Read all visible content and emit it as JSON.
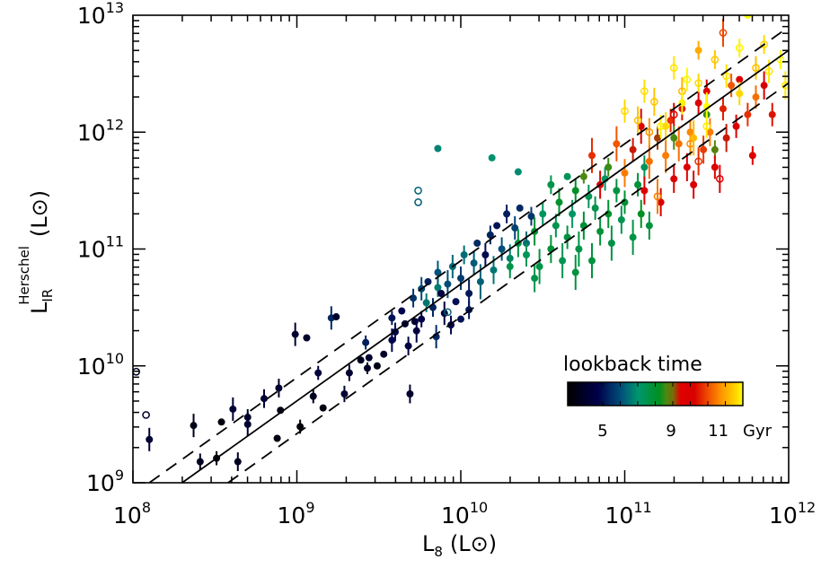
{
  "chart_data": {
    "type": "scatter",
    "title": "",
    "xscale": "log",
    "yscale": "log",
    "xlim_log10": [
      8,
      12
    ],
    "ylim_log10": [
      9,
      13
    ],
    "xlabel": {
      "main": "L",
      "sub": "8",
      "unit": "(L⊙)"
    },
    "ylabel": {
      "main": "L",
      "sub": "IR",
      "sup": "Herschel",
      "unit": "(L⊙)"
    },
    "x_ticks": [
      {
        "base": "10",
        "exp": "8",
        "value": 8
      },
      {
        "base": "10",
        "exp": "9",
        "value": 9
      },
      {
        "base": "10",
        "exp": "10",
        "value": 10
      },
      {
        "base": "10",
        "exp": "11",
        "value": 11
      },
      {
        "base": "10",
        "exp": "12",
        "value": 12
      }
    ],
    "y_ticks": [
      {
        "base": "10",
        "exp": "9",
        "value": 9
      },
      {
        "base": "10",
        "exp": "10",
        "value": 10
      },
      {
        "base": "10",
        "exp": "11",
        "value": 11
      },
      {
        "base": "10",
        "exp": "12",
        "value": 12
      },
      {
        "base": "10",
        "exp": "13",
        "value": 13
      }
    ],
    "lines": [
      {
        "name": "best-fit",
        "style": "solid",
        "slope": 1.0,
        "intercept": 0.7
      },
      {
        "name": "upper-scatter",
        "style": "dashed",
        "slope": 1.0,
        "intercept": 0.9
      },
      {
        "name": "lower-scatter",
        "style": "dashed",
        "slope": 1.0,
        "intercept": 0.42
      }
    ],
    "colorbar": {
      "title": "lookback time",
      "unit": "Gyr",
      "range": [
        3.4,
        13.0
      ],
      "ticks": [
        {
          "label": "5",
          "value": 5
        },
        {
          "label": "9",
          "value": 9
        },
        {
          "label": "11",
          "value": 11
        }
      ],
      "legend_placement": "bottom-right"
    },
    "point_fields": [
      "log_L8",
      "log_LIR",
      "lookback_Gyr",
      "open_symbol",
      "err_dex"
    ],
    "points": [
      [
        8.02,
        9.95,
        4.0,
        1,
        0
      ],
      [
        8.08,
        9.58,
        4.2,
        1,
        0
      ],
      [
        8.1,
        9.37,
        4.3,
        0,
        0.1
      ],
      [
        8.37,
        9.49,
        3.8,
        0,
        0.1
      ],
      [
        8.41,
        9.18,
        4.0,
        0,
        0.07
      ],
      [
        8.51,
        9.21,
        3.7,
        0,
        0.06
      ],
      [
        8.54,
        9.52,
        3.6,
        0,
        0
      ],
      [
        8.61,
        9.63,
        4.4,
        0,
        0.1
      ],
      [
        8.64,
        9.18,
        4.0,
        0,
        0.08
      ],
      [
        8.7,
        9.56,
        4.1,
        0,
        0.07
      ],
      [
        8.7,
        9.5,
        4.3,
        0,
        0.1
      ],
      [
        8.8,
        9.72,
        4.4,
        0,
        0.08
      ],
      [
        8.88,
        9.38,
        3.7,
        0,
        0
      ],
      [
        8.89,
        9.81,
        4.2,
        0,
        0.08
      ],
      [
        8.9,
        9.62,
        3.8,
        0,
        0
      ],
      [
        8.99,
        10.27,
        4.3,
        0,
        0.1
      ],
      [
        9.06,
        10.24,
        4.2,
        0,
        0
      ],
      [
        9.02,
        9.48,
        3.6,
        0,
        0.06
      ],
      [
        9.1,
        9.74,
        4.0,
        0,
        0.06
      ],
      [
        9.13,
        9.94,
        4.5,
        0,
        0.06
      ],
      [
        9.16,
        9.64,
        3.7,
        0,
        0
      ],
      [
        9.21,
        10.41,
        5.4,
        0,
        0.1
      ],
      [
        9.24,
        10.42,
        4.2,
        0,
        0
      ],
      [
        9.29,
        9.76,
        4.4,
        0,
        0.07
      ],
      [
        9.32,
        9.94,
        4.3,
        0,
        0.07
      ],
      [
        9.39,
        10.05,
        4.0,
        0,
        0
      ],
      [
        9.42,
        10.2,
        5.2,
        0,
        0.06
      ],
      [
        9.43,
        9.98,
        4.1,
        0,
        0.05
      ],
      [
        9.44,
        10.07,
        4.3,
        0,
        0
      ],
      [
        9.49,
        10.0,
        3.8,
        0,
        0
      ],
      [
        9.53,
        10.1,
        4.1,
        0,
        0
      ],
      [
        9.58,
        10.22,
        4.8,
        0,
        0.1
      ],
      [
        9.6,
        10.29,
        4.9,
        0,
        0.08
      ],
      [
        9.66,
        10.36,
        4.4,
        0,
        0
      ],
      [
        9.69,
        9.76,
        4.2,
        0,
        0.08
      ],
      [
        9.68,
        10.17,
        4.6,
        0,
        0.08
      ],
      [
        9.72,
        10.38,
        4.3,
        0,
        0
      ],
      [
        9.76,
        10.4,
        4.7,
        0,
        0.07
      ],
      [
        9.79,
        10.54,
        6.6,
        0,
        0.08
      ],
      [
        9.86,
        10.67,
        6.7,
        0,
        0.08
      ],
      [
        9.58,
        10.41,
        5.0,
        0,
        0.06
      ],
      [
        9.64,
        10.47,
        4.8,
        0,
        0
      ],
      [
        9.71,
        10.58,
        5.6,
        0,
        0.08
      ],
      [
        9.76,
        10.66,
        5.9,
        0,
        0.1
      ],
      [
        9.8,
        10.72,
        5.2,
        0,
        0
      ],
      [
        9.83,
        10.5,
        5.3,
        0,
        0.08
      ],
      [
        9.86,
        10.8,
        6.1,
        0,
        0.1
      ],
      [
        9.88,
        10.62,
        4.7,
        0,
        0
      ],
      [
        9.9,
        10.45,
        4.5,
        0,
        0.1
      ],
      [
        9.92,
        10.7,
        6.0,
        0,
        0.12
      ],
      [
        9.95,
        10.85,
        6.4,
        0,
        0.1
      ],
      [
        9.97,
        10.55,
        5.0,
        0,
        0
      ],
      [
        10.0,
        10.75,
        5.7,
        0,
        0.1
      ],
      [
        10.02,
        10.95,
        6.5,
        0,
        0.08
      ],
      [
        10.05,
        10.62,
        5.1,
        0,
        0.12
      ],
      [
        10.08,
        10.88,
        6.2,
        0,
        0.1
      ],
      [
        10.1,
        11.05,
        5.4,
        0,
        0
      ],
      [
        10.12,
        10.72,
        6.3,
        0,
        0.15
      ],
      [
        10.15,
        10.95,
        4.9,
        0,
        0.1
      ],
      [
        10.18,
        11.12,
        5.3,
        0,
        0.08
      ],
      [
        10.2,
        10.82,
        6.6,
        0,
        0.12
      ],
      [
        10.22,
        11.2,
        5.0,
        0,
        0
      ],
      [
        10.25,
        11.0,
        6.0,
        0,
        0.1
      ],
      [
        10.28,
        11.3,
        5.2,
        0,
        0.08
      ],
      [
        10.3,
        10.92,
        6.7,
        0,
        0.12
      ],
      [
        10.33,
        11.18,
        5.8,
        0,
        0.1
      ],
      [
        10.36,
        11.35,
        5.4,
        0,
        0
      ],
      [
        10.4,
        11.05,
        6.5,
        0,
        0.1
      ],
      [
        10.43,
        11.28,
        5.6,
        0,
        0.08
      ],
      [
        9.94,
        10.35,
        4.8,
        0,
        0.08
      ],
      [
        10.0,
        10.4,
        5.0,
        0,
        0
      ],
      [
        9.73,
        10.3,
        4.6,
        0,
        0.1
      ],
      [
        9.85,
        10.25,
        5.4,
        0,
        0.1
      ],
      [
        10.05,
        10.48,
        5.1,
        0,
        0.08
      ],
      [
        9.86,
        11.86,
        6.8,
        0,
        0
      ],
      [
        9.74,
        11.5,
        6.3,
        1,
        0
      ],
      [
        9.74,
        11.4,
        6.2,
        1,
        0
      ],
      [
        10.19,
        11.78,
        7.0,
        0,
        0
      ],
      [
        10.35,
        11.66,
        6.9,
        0,
        0
      ],
      [
        9.92,
        10.46,
        6.4,
        1,
        0
      ],
      [
        10.3,
        10.85,
        7.6,
        0,
        0.1
      ],
      [
        10.35,
        11.05,
        7.8,
        0,
        0.12
      ],
      [
        10.4,
        10.95,
        7.4,
        0,
        0.1
      ],
      [
        10.45,
        11.15,
        8.0,
        0,
        0.12
      ],
      [
        10.48,
        10.85,
        7.7,
        0,
        0.15
      ],
      [
        10.5,
        11.3,
        7.3,
        0,
        0.1
      ],
      [
        10.55,
        11.0,
        7.9,
        0,
        0.12
      ],
      [
        10.58,
        11.2,
        7.6,
        0,
        0.1
      ],
      [
        10.6,
        11.4,
        8.1,
        0,
        0.12
      ],
      [
        10.62,
        10.9,
        7.5,
        0,
        0.15
      ],
      [
        10.65,
        11.1,
        7.8,
        0,
        0.1
      ],
      [
        10.68,
        11.3,
        7.2,
        0,
        0.12
      ],
      [
        10.7,
        11.5,
        8.2,
        0,
        0.1
      ],
      [
        10.72,
        11.0,
        7.7,
        0,
        0.15
      ],
      [
        10.75,
        11.2,
        8.0,
        0,
        0.12
      ],
      [
        10.78,
        11.45,
        7.4,
        0,
        0.1
      ],
      [
        10.8,
        10.9,
        7.8,
        0,
        0.15
      ],
      [
        10.82,
        11.35,
        7.6,
        0,
        0.1
      ],
      [
        10.85,
        11.15,
        7.9,
        0,
        0.12
      ],
      [
        10.88,
        11.6,
        7.3,
        0,
        0.1
      ],
      [
        10.9,
        11.3,
        8.1,
        0,
        0.12
      ],
      [
        10.92,
        11.05,
        7.7,
        0,
        0.15
      ],
      [
        10.95,
        11.5,
        7.8,
        0,
        0.1
      ],
      [
        10.98,
        11.25,
        7.5,
        0,
        0.12
      ],
      [
        11.0,
        11.4,
        8.0,
        0,
        0.1
      ],
      [
        11.05,
        11.1,
        7.7,
        0,
        0.15
      ],
      [
        11.08,
        11.55,
        7.9,
        0,
        0.1
      ],
      [
        11.1,
        11.3,
        8.3,
        0,
        0.12
      ],
      [
        11.12,
        11.7,
        7.4,
        0,
        0.1
      ],
      [
        11.15,
        11.2,
        7.8,
        0,
        0.12
      ],
      [
        10.55,
        11.55,
        7.6,
        0,
        0.08
      ],
      [
        10.65,
        11.62,
        7.4,
        0,
        0
      ],
      [
        10.45,
        10.75,
        7.6,
        0,
        0.12
      ],
      [
        10.7,
        10.8,
        7.8,
        0,
        0.15
      ],
      [
        10.75,
        11.62,
        8.7,
        0,
        0.06
      ],
      [
        10.9,
        11.7,
        8.6,
        0,
        0.08
      ],
      [
        11.3,
        11.95,
        8.7,
        0,
        0.1
      ],
      [
        11.5,
        12.15,
        8.6,
        0,
        0
      ],
      [
        11.55,
        11.85,
        8.8,
        0,
        0.08
      ],
      [
        10.8,
        11.8,
        10.3,
        0,
        0.15
      ],
      [
        10.85,
        11.55,
        9.6,
        0,
        0.12
      ],
      [
        10.95,
        11.9,
        10.6,
        0,
        0.15
      ],
      [
        11.0,
        11.65,
        10.9,
        0,
        0.12
      ],
      [
        11.05,
        11.85,
        9.3,
        0,
        0.1
      ],
      [
        11.1,
        12.05,
        10.0,
        0,
        0.15
      ],
      [
        11.12,
        11.5,
        9.6,
        0,
        0.12
      ],
      [
        11.15,
        11.75,
        10.8,
        0,
        0.15
      ],
      [
        11.2,
        11.95,
        9.2,
        0,
        0.1
      ],
      [
        11.22,
        11.4,
        9.8,
        0,
        0.12
      ],
      [
        11.25,
        11.8,
        10.9,
        0,
        0.15
      ],
      [
        11.28,
        12.1,
        10.3,
        0,
        0.1
      ],
      [
        11.3,
        11.6,
        9.5,
        0,
        0.12
      ],
      [
        11.33,
        11.9,
        10.8,
        0,
        0.15
      ],
      [
        11.35,
        12.2,
        10.1,
        0,
        0.1
      ],
      [
        11.38,
        11.7,
        9.6,
        0,
        0.12
      ],
      [
        11.4,
        12.0,
        11.0,
        0,
        0.1
      ],
      [
        11.42,
        11.55,
        9.8,
        0,
        0.12
      ],
      [
        11.45,
        12.25,
        9.4,
        0,
        0.1
      ],
      [
        11.48,
        11.85,
        10.4,
        0,
        0.12
      ],
      [
        11.5,
        12.35,
        9.6,
        0,
        0.1
      ],
      [
        11.52,
        12.0,
        10.9,
        0,
        0.12
      ],
      [
        11.55,
        11.7,
        9.7,
        0,
        0.1
      ],
      [
        11.6,
        12.2,
        10.2,
        0,
        0.1
      ],
      [
        11.62,
        11.95,
        9.3,
        0,
        0.12
      ],
      [
        11.65,
        12.4,
        10.6,
        0,
        0.1
      ],
      [
        11.68,
        12.05,
        9.9,
        0,
        0.1
      ],
      [
        11.7,
        12.45,
        9.5,
        0,
        0
      ],
      [
        11.75,
        12.15,
        10.3,
        0,
        0.1
      ],
      [
        11.78,
        11.8,
        9.6,
        0,
        0.08
      ],
      [
        11.8,
        12.3,
        10.8,
        0,
        0.1
      ],
      [
        11.85,
        12.4,
        9.8,
        0,
        0.12
      ],
      [
        11.9,
        12.15,
        10.1,
        0,
        0.1
      ],
      [
        11.15,
        12.0,
        11.2,
        1,
        0.12
      ],
      [
        11.3,
        12.15,
        10.0,
        1,
        0.1
      ],
      [
        11.45,
        11.75,
        10.3,
        1,
        0.12
      ],
      [
        11.58,
        11.6,
        9.4,
        1,
        0.12
      ],
      [
        11.2,
        11.45,
        10.9,
        1,
        0.15
      ],
      [
        11.6,
        12.85,
        10.5,
        1,
        0.12
      ],
      [
        11.4,
        11.9,
        11.1,
        1,
        0.1
      ],
      [
        11.0,
        12.18,
        12.4,
        1,
        0.1
      ],
      [
        11.08,
        12.1,
        12.0,
        1,
        0.12
      ],
      [
        11.12,
        12.35,
        12.5,
        1,
        0.1
      ],
      [
        11.18,
        12.26,
        12.1,
        1,
        0.12
      ],
      [
        11.22,
        12.05,
        12.8,
        1,
        0.1
      ],
      [
        11.3,
        12.55,
        12.6,
        1,
        0.1
      ],
      [
        11.35,
        12.35,
        11.8,
        1,
        0.12
      ],
      [
        11.38,
        12.45,
        12.9,
        1,
        0.1
      ],
      [
        11.45,
        12.42,
        12.4,
        1,
        0.08
      ],
      [
        11.5,
        12.05,
        12.7,
        1,
        0.1
      ],
      [
        11.55,
        12.62,
        12.1,
        1,
        0.08
      ],
      [
        11.62,
        12.48,
        12.6,
        1,
        0.1
      ],
      [
        11.7,
        12.72,
        12.8,
        1,
        0.08
      ],
      [
        11.8,
        12.55,
        12.0,
        1,
        0.1
      ],
      [
        11.88,
        12.52,
        12.6,
        1,
        0.1
      ],
      [
        11.85,
        12.75,
        12.4,
        1,
        0.08
      ],
      [
        11.95,
        12.62,
        12.9,
        1,
        0.08
      ],
      [
        11.98,
        12.4,
        12.7,
        1,
        0.12
      ],
      [
        11.25,
        12.05,
        12.4,
        0,
        0.12
      ],
      [
        11.35,
        12.25,
        12.8,
        0,
        0.1
      ],
      [
        11.5,
        12.22,
        13.0,
        0,
        0.12
      ],
      [
        11.42,
        11.95,
        11.9,
        0,
        0.15
      ],
      [
        11.7,
        12.33,
        12.4,
        0,
        0.1
      ],
      [
        11.75,
        13.0,
        13.0,
        0,
        0
      ],
      [
        11.45,
        12.7,
        11.6,
        0,
        0.08
      ]
    ]
  }
}
